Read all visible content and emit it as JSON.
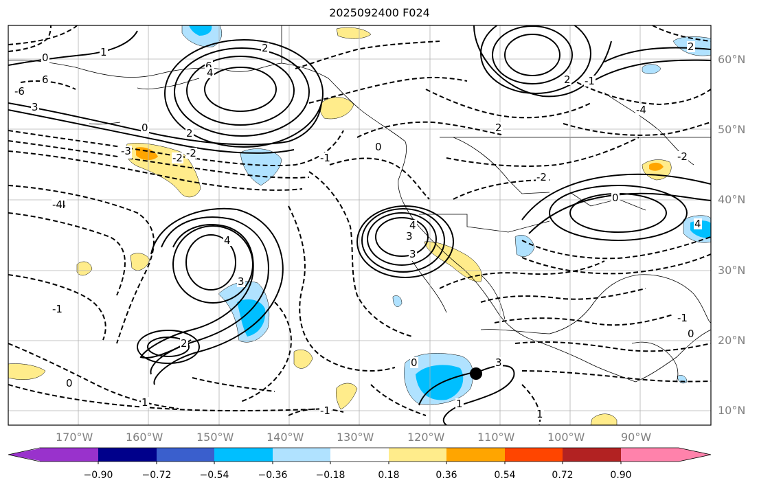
{
  "title": "2025092400 F024",
  "lat_labels": [
    "60°N",
    "50°N",
    "40°N",
    "30°N",
    "20°N",
    "10°N"
  ],
  "lon_labels": [
    "170°W",
    "160°W",
    "150°W",
    "140°W",
    "130°W",
    "120°W",
    "110°W",
    "100°W",
    "90°W"
  ],
  "contour_labels": [
    "6",
    "4",
    "3",
    "2",
    "1",
    "0",
    "0",
    "2",
    "-6",
    "-4",
    "-3",
    "-2",
    "-1",
    "0",
    "2",
    "3",
    "4",
    "6",
    "-4",
    "-3",
    "-2",
    "-1",
    "0",
    "1",
    "2",
    "3",
    "4",
    "4",
    "3",
    "1",
    "0",
    "-1",
    "-2",
    "-4",
    "-1",
    "1",
    "0",
    "-1",
    "-2",
    "0",
    "2",
    "3",
    "4",
    "2"
  ],
  "colorbar": {
    "tick_labels": [
      "−0.90",
      "−0.72",
      "−0.54",
      "−0.36",
      "−0.18",
      "0.18",
      "0.36",
      "0.54",
      "0.72",
      "0.90"
    ],
    "colors": [
      "#9932cc",
      "#00008b",
      "#3a5fcd",
      "#00bfff",
      "#b0e2ff",
      "#ffffff",
      "#ffec8b",
      "#ffa500",
      "#ff4500",
      "#b22222",
      "#ff82ab"
    ]
  },
  "marker": {
    "label": "storm-center"
  }
}
